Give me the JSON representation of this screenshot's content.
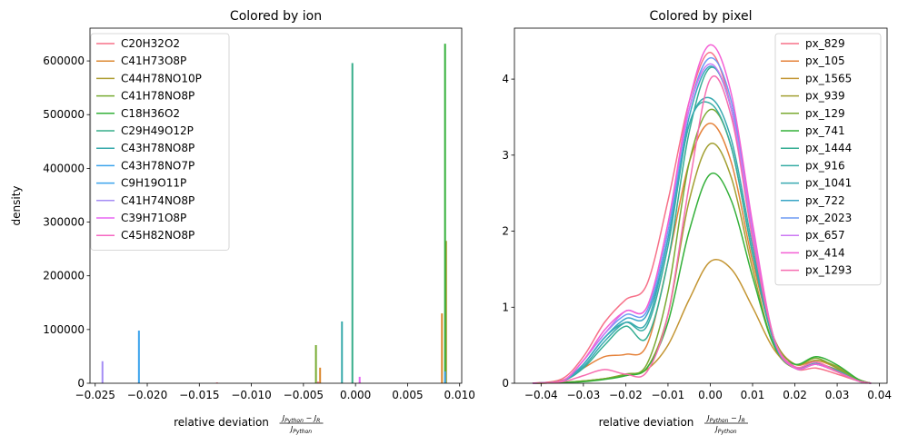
{
  "chart_data": [
    {
      "type": "histogram",
      "title": "Colored by ion",
      "xlabel": "relative deviation",
      "xlabel_formula": {
        "num_left": "J",
        "num_left_sub": "Python",
        "minus": "−",
        "num_right": "J",
        "num_right_sub": "R",
        "den": "J",
        "den_sub": "Python"
      },
      "ylabel": "density",
      "xlim": [
        -0.0255,
        0.0102
      ],
      "ylim": [
        0,
        661000
      ],
      "xticks": [
        -0.025,
        -0.02,
        -0.015,
        -0.01,
        -0.005,
        0.0,
        0.005,
        0.01
      ],
      "xtick_labels": [
        "−0.025",
        "−0.020",
        "−0.015",
        "−0.010",
        "−0.005",
        "0.000",
        "0.005",
        "0.010"
      ],
      "yticks": [
        0,
        100000,
        200000,
        300000,
        400000,
        500000,
        600000
      ],
      "ytick_labels": [
        "0",
        "100000",
        "200000",
        "300000",
        "400000",
        "500000",
        "600000"
      ],
      "legend_position": "top-left",
      "series": [
        {
          "name": "C20H32O2",
          "color": "#f77189",
          "bars": [
            {
              "x": -0.0133,
              "y": 1500
            },
            {
              "x": -0.0036,
              "y": 3000
            },
            {
              "x": 0.0004,
              "y": 2500
            }
          ]
        },
        {
          "name": "C41H73O8P",
          "color": "#dc8932",
          "bars": [
            {
              "x": -0.0034,
              "y": 29000
            },
            {
              "x": 0.0083,
              "y": 130000
            }
          ]
        },
        {
          "name": "C44H78NO10P",
          "color": "#ae9d31",
          "bars": [
            {
              "x": 0.0087,
              "y": 265000
            }
          ]
        },
        {
          "name": "C41H78NO8P",
          "color": "#77ab31",
          "bars": [
            {
              "x": -0.0038,
              "y": 71000
            }
          ]
        },
        {
          "name": "C18H36O2",
          "color": "#33b039",
          "bars": [
            {
              "x": 0.0086,
              "y": 632000
            }
          ]
        },
        {
          "name": "C29H49O12P",
          "color": "#36ad8a",
          "bars": [
            {
              "x": -0.0003,
              "y": 596000
            }
          ]
        },
        {
          "name": "C43H78NO8P",
          "color": "#38aaac",
          "bars": [
            {
              "x": -0.0013,
              "y": 115000
            }
          ]
        },
        {
          "name": "C43H78NO7P",
          "color": "#3ba3ec",
          "bars": [
            {
              "x": -0.0208,
              "y": 98000
            },
            {
              "x": 0.0086,
              "y": 22000
            }
          ]
        },
        {
          "name": "C9H19O11P",
          "color": "#3ba3ec",
          "bars": []
        },
        {
          "name": "C41H74NO8P",
          "color": "#a48cf4",
          "bars": [
            {
              "x": -0.0243,
              "y": 41000
            }
          ]
        },
        {
          "name": "C39H71O8P",
          "color": "#e866f4",
          "bars": [
            {
              "x": 0.0004,
              "y": 12000
            }
          ]
        },
        {
          "name": "C45H82NO8P",
          "color": "#f668c2",
          "bars": []
        }
      ]
    },
    {
      "type": "line",
      "title": "Colored by pixel",
      "xlabel": "relative deviation",
      "xlabel_formula": {
        "num_left": "J",
        "num_left_sub": "Python",
        "minus": "−",
        "num_right": "J",
        "num_right_sub": "R",
        "den": "J",
        "den_sub": "Python"
      },
      "ylabel": "",
      "xlim": [
        -0.0463,
        0.0418
      ],
      "ylim": [
        0,
        4.67
      ],
      "xticks": [
        -0.04,
        -0.03,
        -0.02,
        -0.01,
        0.0,
        0.01,
        0.02,
        0.03,
        0.04
      ],
      "xtick_labels": [
        "−0.04",
        "−0.03",
        "−0.02",
        "−0.01",
        "0.00",
        "0.01",
        "0.02",
        "0.03",
        "0.04"
      ],
      "yticks": [
        0,
        1,
        2,
        3,
        4
      ],
      "ytick_labels": [
        "0",
        "1",
        "2",
        "3",
        "4"
      ],
      "legend_position": "top-right",
      "series": [
        {
          "name": "px_829",
          "color": "#f77189",
          "x": [
            -0.042,
            -0.035,
            -0.03,
            -0.025,
            -0.02,
            -0.015,
            -0.01,
            -0.005,
            0.0,
            0.005,
            0.01,
            0.015,
            0.02,
            0.025,
            0.03,
            0.035,
            0.038
          ],
          "y": [
            0.0,
            0.06,
            0.35,
            0.8,
            1.1,
            1.3,
            2.4,
            3.7,
            4.35,
            3.6,
            1.9,
            0.6,
            0.2,
            0.2,
            0.12,
            0.03,
            0.0
          ]
        },
        {
          "name": "px_105",
          "color": "#e5823a",
          "x": [
            -0.042,
            -0.035,
            -0.03,
            -0.025,
            -0.02,
            -0.015,
            -0.01,
            -0.005,
            0.0,
            0.005,
            0.01,
            0.015,
            0.02,
            0.025,
            0.03,
            0.035,
            0.038
          ],
          "y": [
            0.0,
            0.04,
            0.2,
            0.35,
            0.38,
            0.5,
            1.6,
            2.9,
            3.42,
            2.9,
            1.6,
            0.6,
            0.25,
            0.3,
            0.2,
            0.05,
            0.0
          ]
        },
        {
          "name": "px_1565",
          "color": "#c39532",
          "x": [
            -0.042,
            -0.035,
            -0.03,
            -0.025,
            -0.02,
            -0.015,
            -0.01,
            -0.005,
            0.0,
            0.005,
            0.01,
            0.015,
            0.02,
            0.025,
            0.03,
            0.035,
            0.038
          ],
          "y": [
            0.0,
            0.01,
            0.03,
            0.06,
            0.1,
            0.18,
            0.5,
            1.1,
            1.6,
            1.5,
            1.0,
            0.45,
            0.2,
            0.25,
            0.18,
            0.04,
            0.0
          ]
        },
        {
          "name": "px_939",
          "color": "#a29f31",
          "x": [
            -0.042,
            -0.035,
            -0.03,
            -0.025,
            -0.02,
            -0.015,
            -0.01,
            -0.005,
            0.0,
            0.005,
            0.01,
            0.015,
            0.02,
            0.025,
            0.03,
            0.035,
            0.038
          ],
          "y": [
            0.0,
            0.01,
            0.03,
            0.06,
            0.12,
            0.2,
            0.9,
            2.4,
            3.15,
            2.7,
            1.5,
            0.5,
            0.2,
            0.3,
            0.22,
            0.05,
            0.0
          ]
        },
        {
          "name": "px_129",
          "color": "#7aa931",
          "x": [
            -0.042,
            -0.035,
            -0.03,
            -0.025,
            -0.02,
            -0.015,
            -0.01,
            -0.005,
            0.0,
            0.005,
            0.01,
            0.015,
            0.02,
            0.025,
            0.03,
            0.035,
            0.038
          ],
          "y": [
            0.0,
            0.01,
            0.03,
            0.06,
            0.12,
            0.25,
            1.2,
            2.9,
            3.6,
            3.1,
            1.7,
            0.6,
            0.25,
            0.33,
            0.2,
            0.05,
            0.0
          ]
        },
        {
          "name": "px_741",
          "color": "#33b039",
          "x": [
            -0.042,
            -0.035,
            -0.03,
            -0.025,
            -0.02,
            -0.015,
            -0.01,
            -0.005,
            0.0,
            0.005,
            0.01,
            0.015,
            0.02,
            0.025,
            0.03,
            0.035,
            0.038
          ],
          "y": [
            0.0,
            0.01,
            0.02,
            0.05,
            0.1,
            0.2,
            0.8,
            2.0,
            2.75,
            2.4,
            1.4,
            0.5,
            0.25,
            0.35,
            0.24,
            0.05,
            0.0
          ]
        },
        {
          "name": "px_1444",
          "color": "#35ae93",
          "x": [
            -0.042,
            -0.035,
            -0.03,
            -0.025,
            -0.02,
            -0.015,
            -0.01,
            -0.005,
            0.0,
            0.005,
            0.01,
            0.015,
            0.02,
            0.025,
            0.03,
            0.035,
            0.038
          ],
          "y": [
            0.0,
            0.03,
            0.2,
            0.5,
            0.75,
            0.6,
            1.6,
            3.3,
            4.15,
            3.6,
            2.0,
            0.6,
            0.2,
            0.25,
            0.15,
            0.03,
            0.0
          ]
        },
        {
          "name": "px_916",
          "color": "#36ada4",
          "x": [
            -0.042,
            -0.035,
            -0.03,
            -0.025,
            -0.02,
            -0.015,
            -0.01,
            -0.005,
            0.0,
            0.005,
            0.01,
            0.015,
            0.02,
            0.025,
            0.03,
            0.035,
            0.038
          ],
          "y": [
            0.0,
            0.03,
            0.25,
            0.6,
            0.8,
            0.75,
            1.8,
            3.4,
            3.68,
            3.1,
            1.7,
            0.55,
            0.2,
            0.26,
            0.17,
            0.03,
            0.0
          ]
        },
        {
          "name": "px_1041",
          "color": "#38aab0",
          "x": [
            -0.042,
            -0.035,
            -0.03,
            -0.025,
            -0.02,
            -0.015,
            -0.01,
            -0.005,
            0.0,
            0.005,
            0.01,
            0.015,
            0.02,
            0.025,
            0.03,
            0.035,
            0.038
          ],
          "y": [
            0.0,
            0.03,
            0.22,
            0.55,
            0.8,
            0.8,
            1.9,
            3.4,
            3.75,
            3.2,
            1.8,
            0.55,
            0.2,
            0.26,
            0.16,
            0.03,
            0.0
          ]
        },
        {
          "name": "px_722",
          "color": "#3aa6c6",
          "x": [
            -0.042,
            -0.035,
            -0.03,
            -0.025,
            -0.02,
            -0.015,
            -0.01,
            -0.005,
            0.0,
            0.005,
            0.01,
            0.015,
            0.02,
            0.025,
            0.03,
            0.035,
            0.038
          ],
          "y": [
            0.0,
            0.03,
            0.25,
            0.6,
            0.85,
            0.9,
            1.9,
            3.5,
            4.17,
            3.6,
            2.0,
            0.6,
            0.2,
            0.25,
            0.15,
            0.03,
            0.0
          ]
        },
        {
          "name": "px_2023",
          "color": "#6e9bf4",
          "x": [
            -0.042,
            -0.035,
            -0.03,
            -0.025,
            -0.02,
            -0.015,
            -0.01,
            -0.005,
            0.0,
            0.005,
            0.01,
            0.015,
            0.02,
            0.025,
            0.03,
            0.035,
            0.038
          ],
          "y": [
            0.0,
            0.03,
            0.3,
            0.65,
            0.9,
            0.95,
            2.0,
            3.6,
            4.28,
            3.7,
            2.05,
            0.6,
            0.2,
            0.25,
            0.15,
            0.03,
            0.0
          ]
        },
        {
          "name": "px_657",
          "color": "#cc79f4",
          "x": [
            -0.042,
            -0.035,
            -0.03,
            -0.025,
            -0.02,
            -0.015,
            -0.01,
            -0.005,
            0.0,
            0.005,
            0.01,
            0.015,
            0.02,
            0.025,
            0.03,
            0.035,
            0.038
          ],
          "y": [
            0.0,
            0.03,
            0.3,
            0.65,
            0.95,
            1.0,
            2.1,
            3.6,
            4.2,
            3.6,
            2.0,
            0.6,
            0.2,
            0.25,
            0.15,
            0.03,
            0.0
          ]
        },
        {
          "name": "px_414",
          "color": "#f45fd5",
          "x": [
            -0.042,
            -0.035,
            -0.03,
            -0.025,
            -0.02,
            -0.015,
            -0.01,
            -0.005,
            0.0,
            0.005,
            0.01,
            0.015,
            0.02,
            0.025,
            0.03,
            0.035,
            0.038
          ],
          "y": [
            0.0,
            0.03,
            0.3,
            0.7,
            0.95,
            1.0,
            2.1,
            3.7,
            4.45,
            3.8,
            2.1,
            0.6,
            0.2,
            0.25,
            0.15,
            0.03,
            0.0
          ]
        },
        {
          "name": "px_1293",
          "color": "#f66cb0",
          "x": [
            -0.042,
            -0.035,
            -0.03,
            -0.025,
            -0.02,
            -0.015,
            -0.01,
            -0.005,
            0.0,
            0.005,
            0.01,
            0.015,
            0.02,
            0.025,
            0.03,
            0.035,
            0.038
          ],
          "y": [
            0.0,
            0.02,
            0.1,
            0.18,
            0.12,
            0.15,
            0.9,
            2.6,
            4.0,
            3.5,
            1.9,
            0.6,
            0.22,
            0.28,
            0.15,
            0.03,
            0.0
          ]
        }
      ]
    }
  ]
}
